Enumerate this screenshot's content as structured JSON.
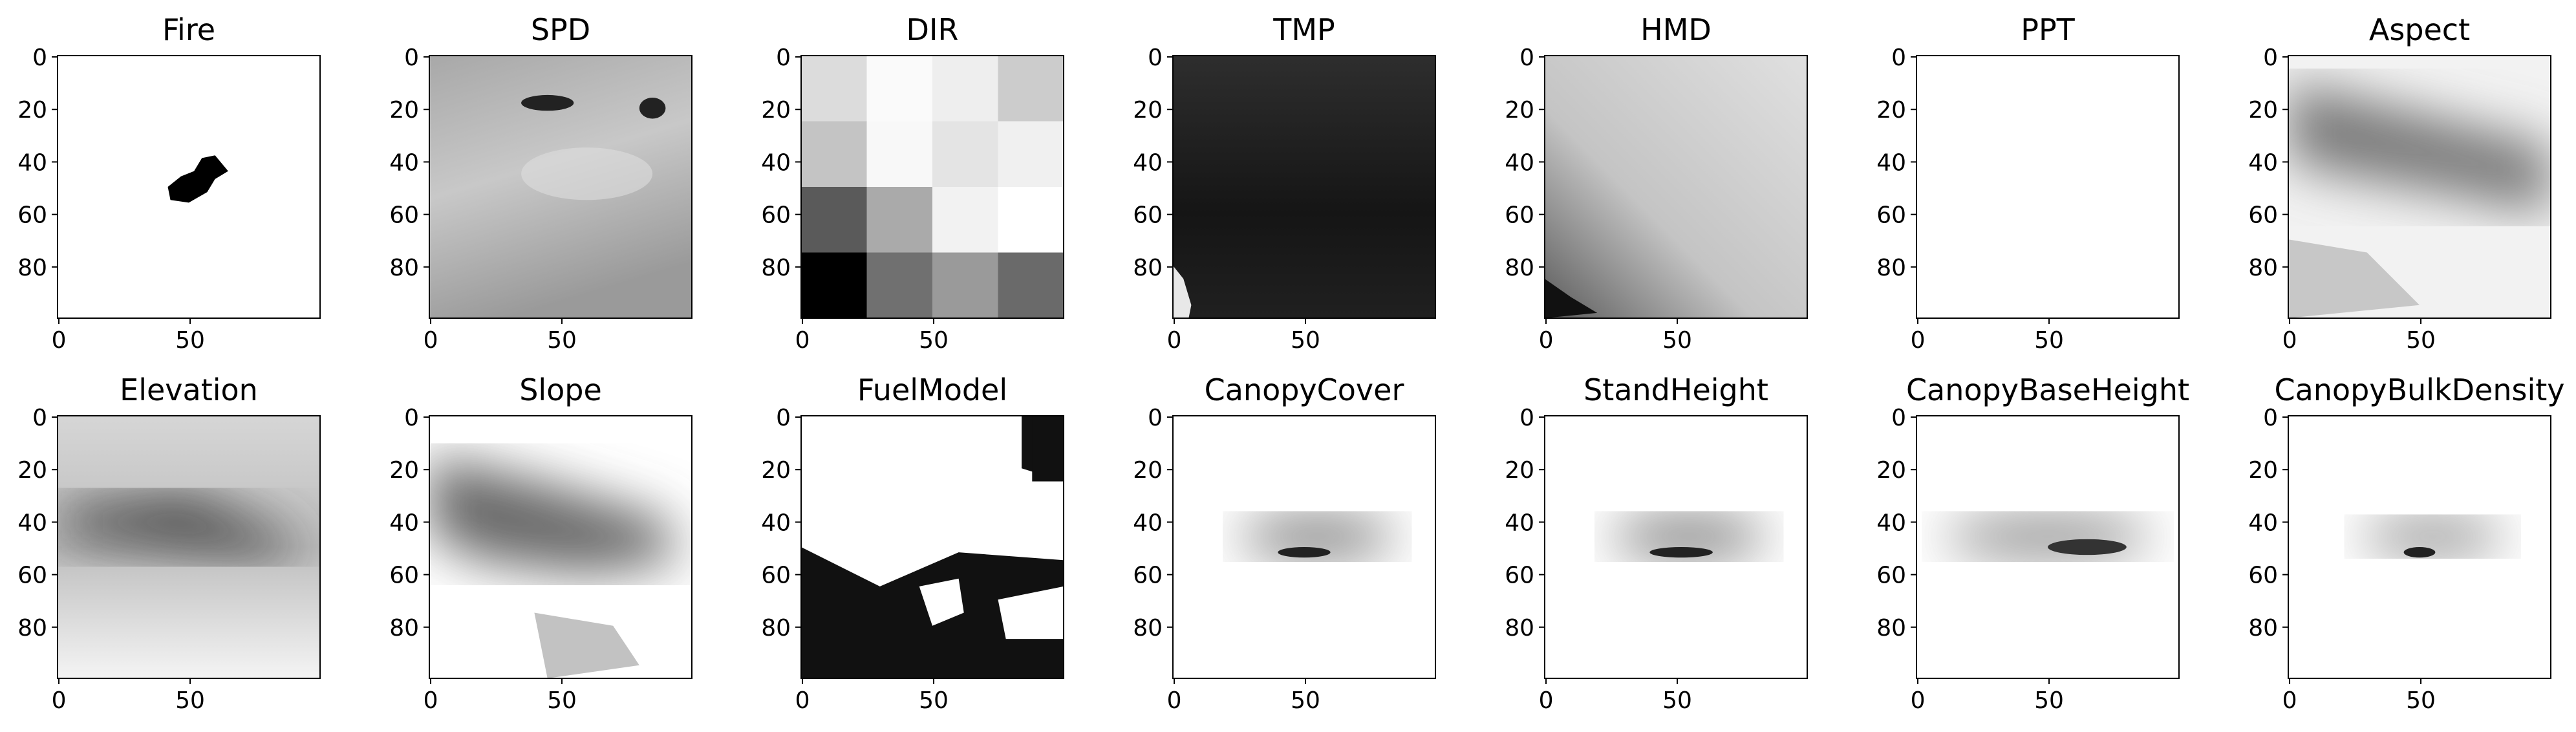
{
  "chart_data": [
    {
      "type": "image",
      "title": "Fire",
      "xlim": [
        -0.5,
        99.5
      ],
      "ylim": [
        99.5,
        -0.5
      ],
      "xticks": [
        0,
        50
      ],
      "yticks": [
        0,
        20,
        40,
        60,
        80
      ]
    },
    {
      "type": "image",
      "title": "SPD",
      "xlim": [
        -0.5,
        99.5
      ],
      "ylim": [
        99.5,
        -0.5
      ],
      "xticks": [
        0,
        50
      ],
      "yticks": [
        0,
        20,
        40,
        60,
        80
      ]
    },
    {
      "type": "image",
      "title": "DIR",
      "xlim": [
        -0.5,
        99.5
      ],
      "ylim": [
        99.5,
        -0.5
      ],
      "xticks": [
        0,
        50
      ],
      "yticks": [
        0,
        20,
        40,
        60,
        80
      ]
    },
    {
      "type": "image",
      "title": "TMP",
      "xlim": [
        -0.5,
        99.5
      ],
      "ylim": [
        99.5,
        -0.5
      ],
      "xticks": [
        0,
        50
      ],
      "yticks": [
        0,
        20,
        40,
        60,
        80
      ]
    },
    {
      "type": "image",
      "title": "HMD",
      "xlim": [
        -0.5,
        99.5
      ],
      "ylim": [
        99.5,
        -0.5
      ],
      "xticks": [
        0,
        50
      ],
      "yticks": [
        0,
        20,
        40,
        60,
        80
      ]
    },
    {
      "type": "image",
      "title": "PPT",
      "xlim": [
        -0.5,
        99.5
      ],
      "ylim": [
        99.5,
        -0.5
      ],
      "xticks": [
        0,
        50
      ],
      "yticks": [
        0,
        20,
        40,
        60,
        80
      ]
    },
    {
      "type": "image",
      "title": "Aspect",
      "xlim": [
        -0.5,
        99.5
      ],
      "ylim": [
        99.5,
        -0.5
      ],
      "xticks": [
        0,
        50
      ],
      "yticks": [
        0,
        20,
        40,
        60,
        80
      ]
    },
    {
      "type": "image",
      "title": "Elevation",
      "xlim": [
        -0.5,
        99.5
      ],
      "ylim": [
        99.5,
        -0.5
      ],
      "xticks": [
        0,
        50
      ],
      "yticks": [
        0,
        20,
        40,
        60,
        80
      ]
    },
    {
      "type": "image",
      "title": "Slope",
      "xlim": [
        -0.5,
        99.5
      ],
      "ylim": [
        99.5,
        -0.5
      ],
      "xticks": [
        0,
        50
      ],
      "yticks": [
        0,
        20,
        40,
        60,
        80
      ]
    },
    {
      "type": "image",
      "title": "FuelModel",
      "xlim": [
        -0.5,
        99.5
      ],
      "ylim": [
        99.5,
        -0.5
      ],
      "xticks": [
        0,
        50
      ],
      "yticks": [
        0,
        20,
        40,
        60,
        80
      ]
    },
    {
      "type": "image",
      "title": "CanopyCover",
      "xlim": [
        -0.5,
        99.5
      ],
      "ylim": [
        99.5,
        -0.5
      ],
      "xticks": [
        0,
        50
      ],
      "yticks": [
        0,
        20,
        40,
        60,
        80
      ]
    },
    {
      "type": "image",
      "title": "StandHeight",
      "xlim": [
        -0.5,
        99.5
      ],
      "ylim": [
        99.5,
        -0.5
      ],
      "xticks": [
        0,
        50
      ],
      "yticks": [
        0,
        20,
        40,
        60,
        80
      ]
    },
    {
      "type": "image",
      "title": "CanopyBaseHeight",
      "xlim": [
        -0.5,
        99.5
      ],
      "ylim": [
        99.5,
        -0.5
      ],
      "xticks": [
        0,
        50
      ],
      "yticks": [
        0,
        20,
        40,
        60,
        80
      ]
    },
    {
      "type": "image",
      "title": "CanopyBulkDensity",
      "xlim": [
        -0.5,
        99.5
      ],
      "ylim": [
        99.5,
        -0.5
      ],
      "xticks": [
        0,
        50
      ],
      "yticks": [
        0,
        20,
        40,
        60,
        80
      ]
    }
  ]
}
